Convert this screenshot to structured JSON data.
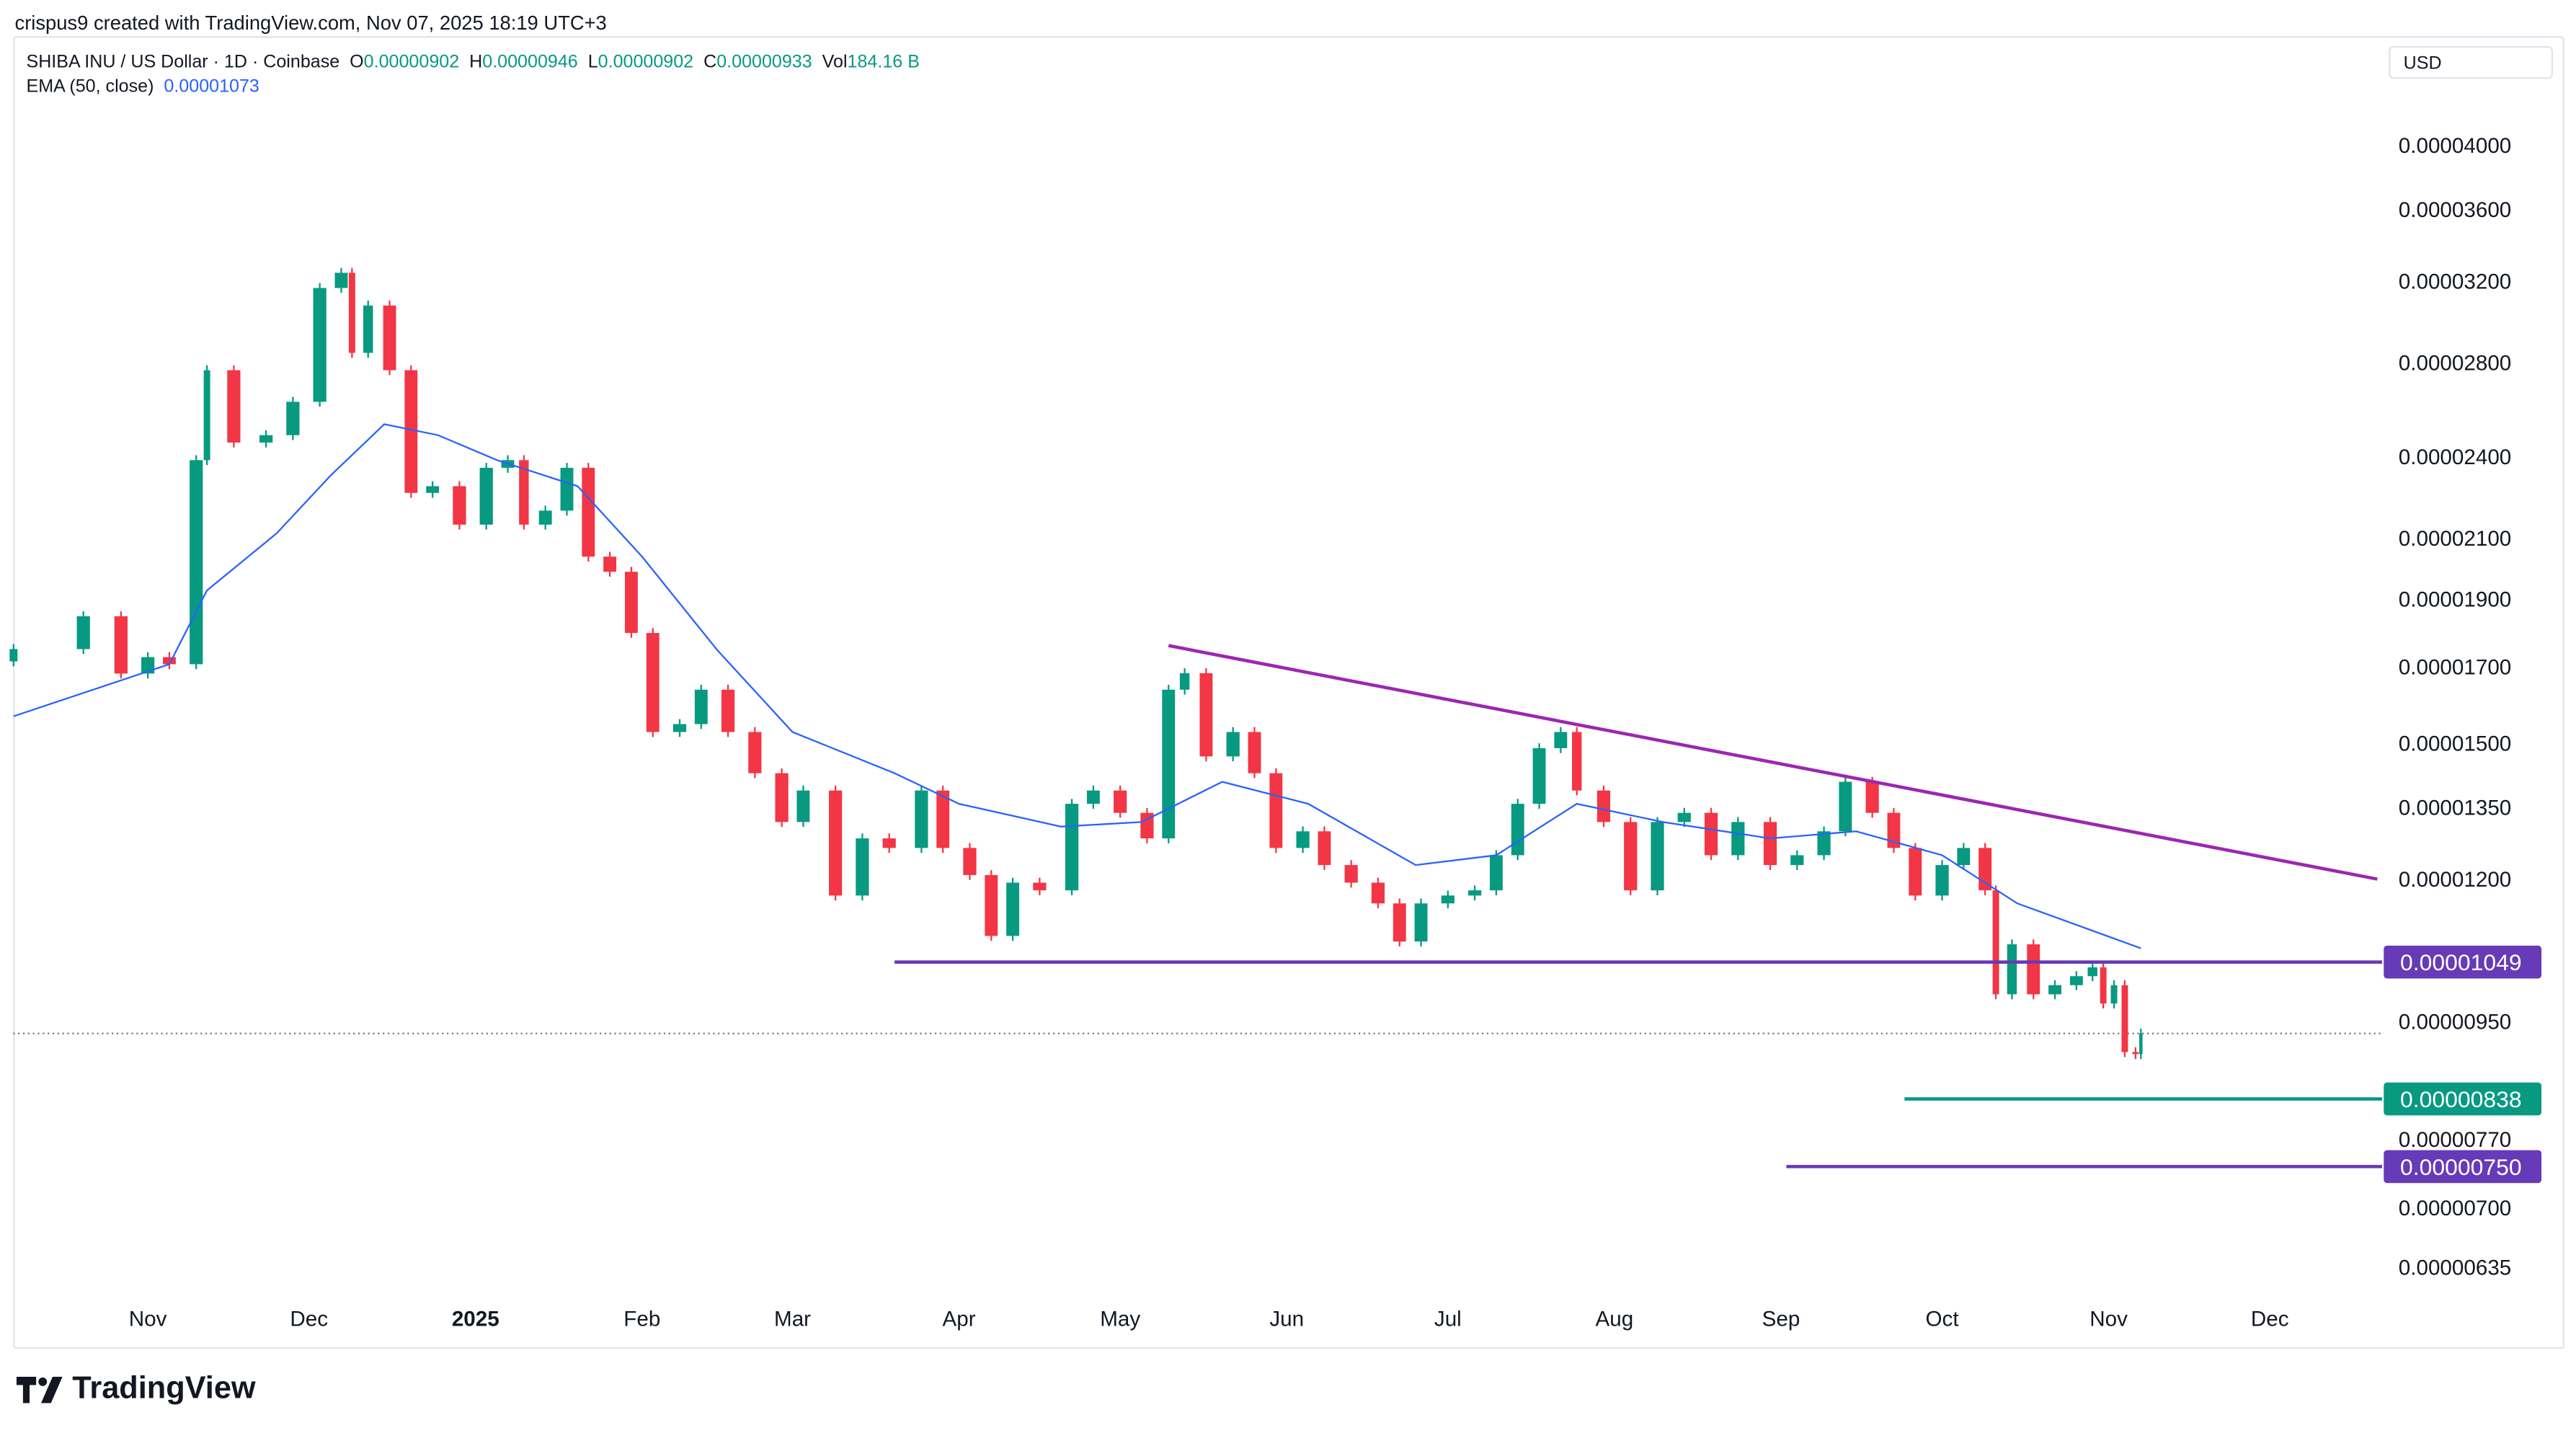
{
  "header": {
    "credit": "crispus9 created with TradingView.com, Nov 07, 2025 18:19 UTC+3"
  },
  "legend": {
    "symbol": "SHIBA INU / US Dollar · 1D · Coinbase",
    "o_label": "O",
    "o": "0.00000902",
    "h_label": "H",
    "h": "0.00000946",
    "l_label": "L",
    "l": "0.00000902",
    "c_label": "C",
    "c": "0.00000933",
    "vol_label": "Vol",
    "vol": "184.16 B",
    "ema_label": "EMA (50, close)",
    "ema": "0.00001073"
  },
  "currency": "USD",
  "footer": {
    "brand": "TradingView"
  },
  "colors": {
    "up": "#089981",
    "down": "#f23645",
    "ema": "#2962ff",
    "trendline": "#9c27b0",
    "level": "#673ab7",
    "support": "#089981"
  },
  "chart_data": {
    "type": "candlestick",
    "scale": "log",
    "ylim": [
      6e-06,
      4.2e-05
    ],
    "y_ticks": [
      "0.00004000",
      "0.00003600",
      "0.00003200",
      "0.00002800",
      "0.00002400",
      "0.00002100",
      "0.00001900",
      "0.00001700",
      "0.00001500",
      "0.00001350",
      "0.00001200",
      "0.00000950",
      "0.00000770",
      "0.00000700",
      "0.00000635"
    ],
    "x_ticks": [
      {
        "label": "Nov",
        "date": "2024-11-01"
      },
      {
        "label": "Dec",
        "date": "2024-12-01"
      },
      {
        "label": "2025",
        "date": "2025-01-01",
        "bold": true
      },
      {
        "label": "Feb",
        "date": "2025-02-01"
      },
      {
        "label": "Mar",
        "date": "2025-03-01"
      },
      {
        "label": "Apr",
        "date": "2025-04-01"
      },
      {
        "label": "May",
        "date": "2025-05-01"
      },
      {
        "label": "Jun",
        "date": "2025-06-01"
      },
      {
        "label": "Jul",
        "date": "2025-07-01"
      },
      {
        "label": "Aug",
        "date": "2025-08-01"
      },
      {
        "label": "Sep",
        "date": "2025-09-01"
      },
      {
        "label": "Oct",
        "date": "2025-10-01"
      },
      {
        "label": "Nov",
        "date": "2025-11-01"
      },
      {
        "label": "Dec",
        "date": "2025-12-01"
      }
    ],
    "closes": [
      [
        "2024-10-07",
        1.753e-05
      ],
      [
        "2024-10-20",
        1.85e-05
      ],
      [
        "2024-10-27",
        1.684e-05
      ],
      [
        "2024-11-01",
        1.73e-05
      ],
      [
        "2024-11-05",
        1.71e-05
      ],
      [
        "2024-11-10",
        2.39e-05
      ],
      [
        "2024-11-12",
        2.77e-05
      ],
      [
        "2024-11-17",
        2.46e-05
      ],
      [
        "2024-11-23",
        2.49e-05
      ],
      [
        "2024-11-28",
        2.63e-05
      ],
      [
        "2024-12-03",
        3.17e-05
      ],
      [
        "2024-12-07",
        3.25e-05
      ],
      [
        "2024-12-09",
        2.85e-05
      ],
      [
        "2024-12-12",
        3.08e-05
      ],
      [
        "2024-12-16",
        2.77e-05
      ],
      [
        "2024-12-20",
        2.265e-05
      ],
      [
        "2024-12-24",
        2.29e-05
      ],
      [
        "2024-12-29",
        2.15e-05
      ],
      [
        "2025-01-03",
        2.36e-05
      ],
      [
        "2025-01-07",
        2.39e-05
      ],
      [
        "2025-01-10",
        2.15e-05
      ],
      [
        "2025-01-14",
        2.2e-05
      ],
      [
        "2025-01-18",
        2.36e-05
      ],
      [
        "2025-01-22",
        2.04e-05
      ],
      [
        "2025-01-26",
        1.99e-05
      ],
      [
        "2025-01-30",
        1.8e-05
      ],
      [
        "2025-02-03",
        1.53e-05
      ],
      [
        "2025-02-08",
        1.55e-05
      ],
      [
        "2025-02-12",
        1.64e-05
      ],
      [
        "2025-02-17",
        1.53e-05
      ],
      [
        "2025-02-22",
        1.43e-05
      ],
      [
        "2025-02-27",
        1.32e-05
      ],
      [
        "2025-03-03",
        1.39e-05
      ],
      [
        "2025-03-09",
        1.17e-05
      ],
      [
        "2025-03-14",
        1.285e-05
      ],
      [
        "2025-03-19",
        1.265e-05
      ],
      [
        "2025-03-25",
        1.39e-05
      ],
      [
        "2025-03-29",
        1.265e-05
      ],
      [
        "2025-04-03",
        1.21e-05
      ],
      [
        "2025-04-07",
        1.095e-05
      ],
      [
        "2025-04-11",
        1.195e-05
      ],
      [
        "2025-04-16",
        1.18e-05
      ],
      [
        "2025-04-22",
        1.36e-05
      ],
      [
        "2025-04-26",
        1.39e-05
      ],
      [
        "2025-05-01",
        1.34e-05
      ],
      [
        "2025-05-06",
        1.285e-05
      ],
      [
        "2025-05-10",
        1.64e-05
      ],
      [
        "2025-05-13",
        1.685e-05
      ],
      [
        "2025-05-17",
        1.47e-05
      ],
      [
        "2025-05-22",
        1.53e-05
      ],
      [
        "2025-05-26",
        1.43e-05
      ],
      [
        "2025-05-30",
        1.265e-05
      ],
      [
        "2025-06-04",
        1.3e-05
      ],
      [
        "2025-06-08",
        1.23e-05
      ],
      [
        "2025-06-13",
        1.195e-05
      ],
      [
        "2025-06-18",
        1.155e-05
      ],
      [
        "2025-06-22",
        1.085e-05
      ],
      [
        "2025-06-26",
        1.155e-05
      ],
      [
        "2025-07-01",
        1.17e-05
      ],
      [
        "2025-07-06",
        1.18e-05
      ],
      [
        "2025-07-10",
        1.25e-05
      ],
      [
        "2025-07-14",
        1.36e-05
      ],
      [
        "2025-07-18",
        1.49e-05
      ],
      [
        "2025-07-22",
        1.53e-05
      ],
      [
        "2025-07-25",
        1.39e-05
      ],
      [
        "2025-07-30",
        1.32e-05
      ],
      [
        "2025-08-04",
        1.18e-05
      ],
      [
        "2025-08-09",
        1.32e-05
      ],
      [
        "2025-08-14",
        1.34e-05
      ],
      [
        "2025-08-19",
        1.25e-05
      ],
      [
        "2025-08-24",
        1.32e-05
      ],
      [
        "2025-08-30",
        1.23e-05
      ],
      [
        "2025-09-04",
        1.25e-05
      ],
      [
        "2025-09-09",
        1.3e-05
      ],
      [
        "2025-09-13",
        1.41e-05
      ],
      [
        "2025-09-18",
        1.34e-05
      ],
      [
        "2025-09-22",
        1.265e-05
      ],
      [
        "2025-09-26",
        1.17e-05
      ],
      [
        "2025-10-01",
        1.23e-05
      ],
      [
        "2025-10-05",
        1.265e-05
      ],
      [
        "2025-10-09",
        1.18e-05
      ],
      [
        "2025-10-11",
        9.95e-06
      ],
      [
        "2025-10-14",
        1.08e-05
      ],
      [
        "2025-10-18",
        9.95e-06
      ],
      [
        "2025-10-22",
        1.01e-05
      ],
      [
        "2025-10-26",
        1.025e-05
      ],
      [
        "2025-10-29",
        1.04e-05
      ],
      [
        "2025-10-31",
        9.8e-06
      ],
      [
        "2025-11-02",
        1.01e-05
      ],
      [
        "2025-11-04",
        9.05e-06
      ],
      [
        "2025-11-06",
        9.02e-06
      ],
      [
        "2025-11-07",
        9.33e-06
      ]
    ],
    "ema50": [
      [
        "2024-10-07",
        1.57e-05
      ],
      [
        "2024-11-05",
        1.71e-05
      ],
      [
        "2024-11-12",
        1.93e-05
      ],
      [
        "2024-11-25",
        2.12e-05
      ],
      [
        "2024-12-05",
        2.33e-05
      ],
      [
        "2024-12-15",
        2.535e-05
      ],
      [
        "2024-12-25",
        2.49e-05
      ],
      [
        "2025-01-05",
        2.39e-05
      ],
      [
        "2025-01-20",
        2.29e-05
      ],
      [
        "2025-02-01",
        2.04e-05
      ],
      [
        "2025-02-15",
        1.75e-05
      ],
      [
        "2025-03-01",
        1.53e-05
      ],
      [
        "2025-03-20",
        1.43e-05
      ],
      [
        "2025-04-01",
        1.36e-05
      ],
      [
        "2025-04-20",
        1.31e-05
      ],
      [
        "2025-05-05",
        1.32e-05
      ],
      [
        "2025-05-20",
        1.41e-05
      ],
      [
        "2025-06-05",
        1.36e-05
      ],
      [
        "2025-06-25",
        1.23e-05
      ],
      [
        "2025-07-10",
        1.25e-05
      ],
      [
        "2025-07-25",
        1.36e-05
      ],
      [
        "2025-08-10",
        1.32e-05
      ],
      [
        "2025-08-30",
        1.285e-05
      ],
      [
        "2025-09-15",
        1.3e-05
      ],
      [
        "2025-10-01",
        1.25e-05
      ],
      [
        "2025-10-15",
        1.155e-05
      ],
      [
        "2025-11-07",
        1.073e-05
      ]
    ],
    "last_price": 9.33e-06,
    "drawings": [
      {
        "kind": "trendline",
        "from": [
          "2025-05-10",
          1.763e-05
        ],
        "to": [
          "2025-12-21",
          1.202e-05
        ]
      },
      {
        "kind": "horizontal",
        "from_date": "2025-03-20",
        "value": 1.049e-05,
        "label": "0.00001049"
      },
      {
        "kind": "horizontal",
        "from_date": "2025-09-24",
        "value": 8.38e-06,
        "label": "0.00000838"
      },
      {
        "kind": "horizontal",
        "from_date": "2025-09-02",
        "value": 7.5e-06,
        "label": "0.00000750"
      }
    ]
  }
}
